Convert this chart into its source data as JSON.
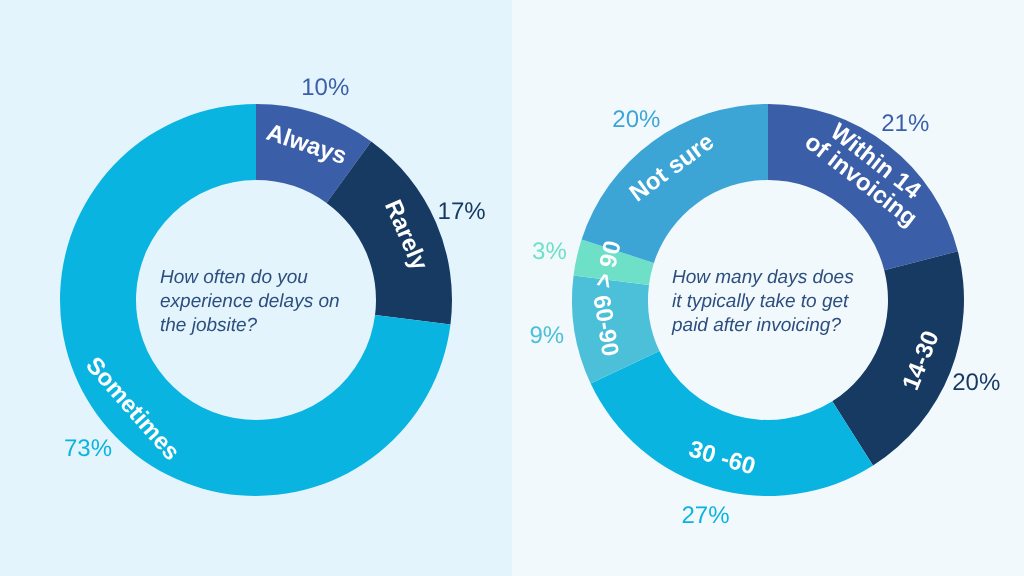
{
  "chart_data": [
    {
      "type": "donut",
      "title": "How often do you experience delays on the jobsite?",
      "categories": [
        "Always",
        "Rarely",
        "Sometimes"
      ],
      "values": [
        10,
        17,
        73
      ],
      "colors": [
        "#3a5ea8",
        "#173a63",
        "#0ab4e0"
      ],
      "value_labels": [
        "10%",
        "17%",
        "73%"
      ],
      "legend": false
    },
    {
      "type": "donut",
      "title": "How many days does it typically take to get paid after invoicing?",
      "categories": [
        "Within 14\nof invoicing",
        "14-30",
        "30 -60",
        "60-90",
        "> 90",
        "Not sure"
      ],
      "values": [
        21,
        20,
        27,
        9,
        3,
        20
      ],
      "colors": [
        "#3a5ea8",
        "#173a63",
        "#0ab4e0",
        "#4cbfd9",
        "#6ee0c8",
        "#3da5d6"
      ],
      "value_labels": [
        "21%",
        "20%",
        "27%",
        "9%",
        "3%",
        "20%"
      ],
      "legend": false
    }
  ]
}
